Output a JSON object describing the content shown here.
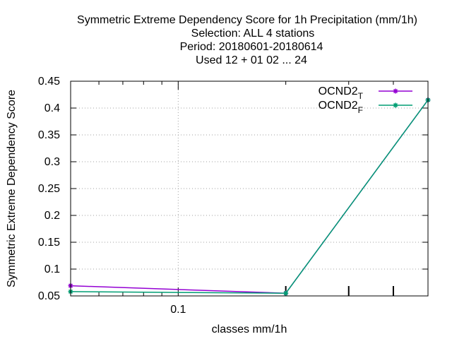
{
  "chart_data": {
    "type": "line",
    "title_lines": [
      "Symmetric Extreme Dependency Score  for 1h Precipitation (mm/1h)",
      "Selection: ALL      4 stations",
      "Period: 20180601-20180614",
      "Used  12 + 01 02 ... 24"
    ],
    "xlabel": "classes mm/1h",
    "ylabel": "Symmetric Extreme Dependency Score",
    "x_scale": "log",
    "xlim": [
      0.05,
      0.5
    ],
    "ylim": [
      0.05,
      0.45
    ],
    "y_ticks": [
      "0.05",
      "0.1",
      "0.15",
      "0.2",
      "0.25",
      "0.3",
      "0.35",
      "0.4",
      "0.45"
    ],
    "x_ticks": [
      "0.1"
    ],
    "grid": true,
    "legend_position": "top-right",
    "series": [
      {
        "name": "OCND2",
        "name_subscript": "T",
        "color": "#9400d3",
        "x": [
          0.05,
          0.2,
          0.5
        ],
        "y": [
          0.069,
          0.055,
          0.415
        ]
      },
      {
        "name": "OCND2",
        "name_subscript": "F",
        "color": "#009e73",
        "x": [
          0.05,
          0.2,
          0.5
        ],
        "y": [
          0.058,
          0.055,
          0.415
        ]
      }
    ]
  }
}
